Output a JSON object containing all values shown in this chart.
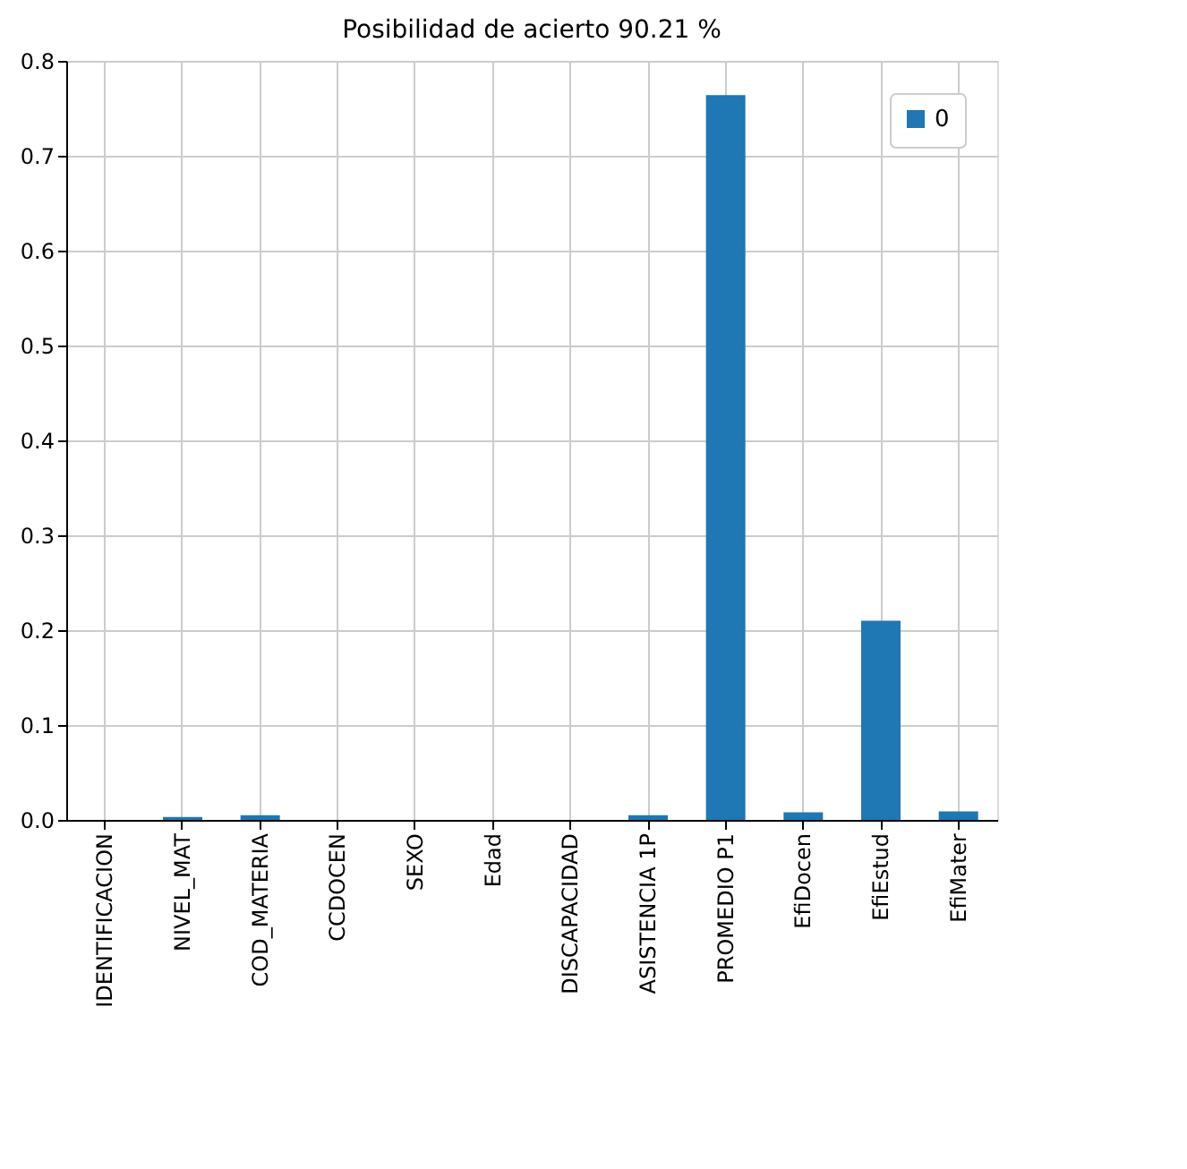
{
  "chart_data": {
    "type": "bar",
    "title": "Posibilidad de acierto  90.21 %",
    "categories": [
      "IDENTIFICACION",
      "NIVEL_MAT",
      "COD_MATERIA",
      "CCDOCEN",
      "SEXO",
      "Edad",
      "DISCAPACIDAD",
      "ASISTENCIA 1P",
      "PROMEDIO P1",
      "EfiDocen",
      "EfiEstud",
      "EfiMater"
    ],
    "series": [
      {
        "name": "0",
        "color": "#1f77b4",
        "values": [
          0,
          0.003,
          0.005,
          0,
          0,
          0,
          0,
          0.005,
          0.764,
          0.008,
          0.21,
          0.009
        ]
      }
    ],
    "ylim": [
      0,
      0.8
    ],
    "yticks": [
      {
        "value": 0,
        "label": "0.0"
      },
      0.1,
      0.2,
      0.3,
      0.4,
      0.5,
      0.6,
      0.7,
      0.8
    ],
    "grid": true,
    "legend": "top right"
  }
}
